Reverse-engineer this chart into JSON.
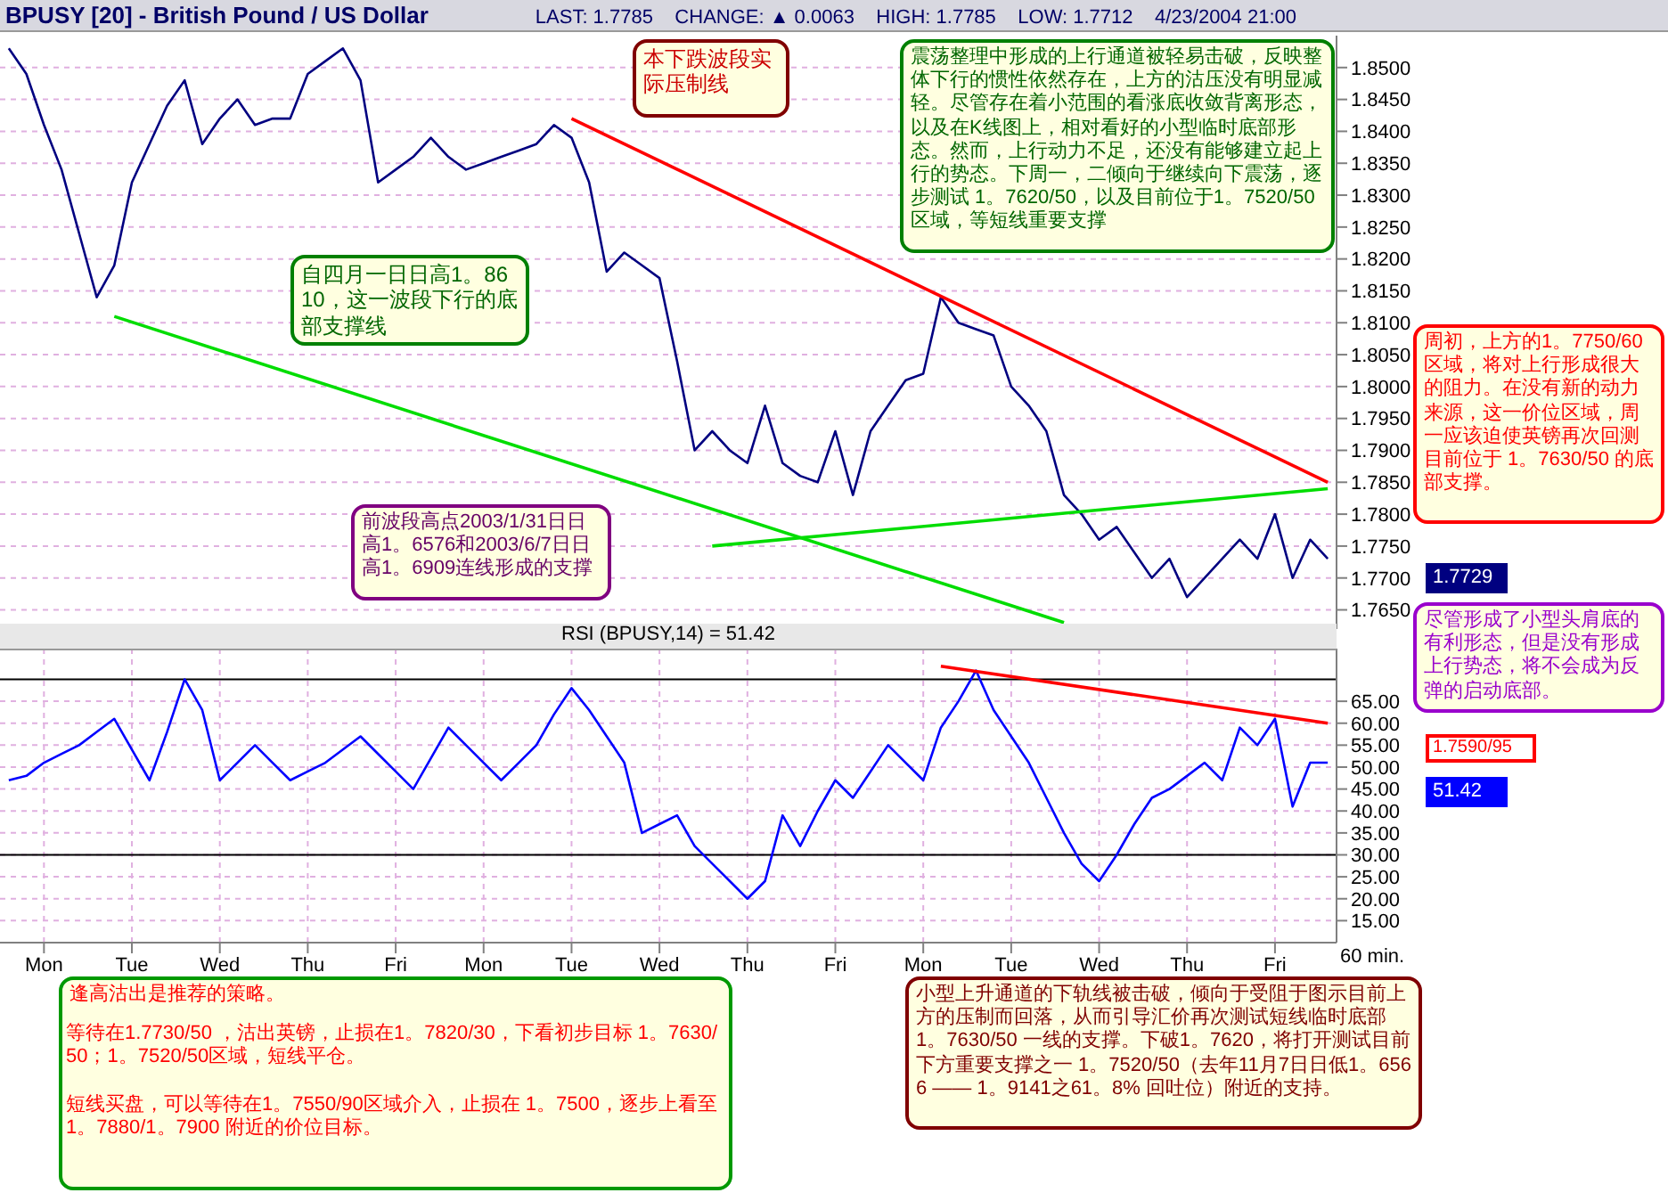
{
  "chart_data": [
    {
      "type": "line",
      "title": "BPUSY [20] - British Pound / US Dollar",
      "subtitle": "LAST: 1.7785    CHANGE: ▲ 0.0063    HIGH: 1.7785    LOW: 1.7712    4/23/2004 21:00",
      "categories": [
        null,
        null,
        null,
        null,
        null,
        null,
        null,
        null,
        null,
        null,
        null,
        null,
        null,
        null,
        null,
        null,
        null,
        null,
        null,
        null,
        null,
        null,
        null,
        null,
        null,
        null,
        null,
        null,
        null,
        null,
        null,
        null,
        null,
        null,
        null,
        null,
        null,
        null,
        null,
        null,
        null,
        null,
        null,
        null,
        null,
        null,
        null,
        null,
        null,
        null,
        null,
        null,
        null,
        null,
        null,
        null,
        null,
        null,
        null,
        null,
        null,
        null,
        null,
        null,
        null,
        null,
        null,
        null,
        null,
        null,
        null,
        null,
        null,
        null,
        null,
        null
      ],
      "ylim": [
        1.762,
        1.855
      ],
      "yticks": [
        {
          "value": 1.765,
          "label": "1.7650"
        },
        {
          "value": 1.77,
          "label": "1.7700"
        },
        {
          "value": 1.775,
          "label": "1.7750"
        },
        {
          "value": 1.78,
          "label": "1.7800"
        },
        {
          "value": 1.785,
          "label": "1.7850"
        },
        {
          "value": 1.79,
          "label": "1.7900"
        },
        {
          "value": 1.795,
          "label": "1.7950"
        },
        {
          "value": 1.8,
          "label": "1.8000"
        },
        {
          "value": 1.805,
          "label": "1.8050"
        },
        {
          "value": 1.81,
          "label": "1.8100"
        },
        {
          "value": 1.815,
          "label": "1.8150"
        },
        {
          "value": 1.82,
          "label": "1.8200"
        },
        {
          "value": 1.825,
          "label": "1.8250"
        },
        {
          "value": 1.83,
          "label": "1.8300"
        },
        {
          "value": 1.835,
          "label": "1.8350"
        },
        {
          "value": 1.84,
          "label": "1.8400"
        },
        {
          "value": 1.845,
          "label": "1.8450"
        },
        {
          "value": 1.85,
          "label": "1.8500"
        }
      ],
      "grid": true,
      "tick_labels": "y",
      "series": [
        {
          "color": "#000080",
          "values": [
            1.853,
            1.849,
            1.841,
            1.834,
            1.824,
            1.814,
            1.819,
            1.832,
            1.838,
            1.844,
            1.848,
            1.838,
            1.842,
            1.845,
            1.841,
            1.842,
            1.842,
            1.849,
            1.851,
            1.853,
            1.848,
            1.832,
            1.834,
            1.836,
            1.839,
            1.836,
            1.834,
            1.835,
            1.836,
            1.837,
            1.838,
            1.841,
            1.839,
            1.832,
            1.818,
            1.821,
            1.819,
            1.817,
            1.804,
            1.79,
            1.793,
            1.79,
            1.788,
            1.797,
            1.788,
            1.786,
            1.785,
            1.793,
            1.783,
            1.793,
            1.797,
            1.801,
            1.802,
            1.814,
            1.81,
            1.809,
            1.808,
            1.8,
            1.797,
            1.793,
            1.783,
            1.78,
            1.776,
            1.778,
            1.774,
            1.77,
            1.773,
            1.767,
            1.77,
            1.773,
            1.776,
            1.773,
            1.78,
            1.77,
            1.776,
            1.773
          ]
        },
        {
          "color": "#ff0000",
          "values": [
            null,
            null,
            null,
            null,
            null,
            null,
            null,
            null,
            null,
            null,
            null,
            null,
            null,
            null,
            null,
            null,
            null,
            null,
            null,
            null,
            null,
            null,
            null,
            null,
            null,
            null,
            null,
            null,
            null,
            null,
            null,
            null,
            1.842,
            null,
            null,
            null,
            null,
            null,
            null,
            null,
            null,
            null,
            null,
            null,
            null,
            null,
            null,
            null,
            null,
            null,
            null,
            null,
            null,
            null,
            null,
            null,
            null,
            null,
            null,
            null,
            null,
            null,
            null,
            null,
            null,
            null,
            null,
            null,
            null,
            null,
            null,
            null,
            null,
            null,
            null,
            1.785
          ]
        },
        {
          "color": "#00dd00",
          "values": [
            null,
            null,
            null,
            null,
            null,
            null,
            1.811,
            null,
            null,
            null,
            null,
            null,
            null,
            null,
            null,
            null,
            null,
            null,
            null,
            null,
            null,
            null,
            null,
            null,
            null,
            null,
            null,
            null,
            null,
            null,
            null,
            null,
            null,
            null,
            null,
            null,
            null,
            null,
            null,
            null,
            null,
            null,
            null,
            null,
            null,
            null,
            null,
            null,
            null,
            null,
            null,
            null,
            null,
            null,
            null,
            null,
            null,
            null,
            null,
            null,
            1.763,
            null,
            null,
            null,
            null,
            null,
            null,
            null,
            null,
            null,
            null,
            null,
            null,
            null,
            null,
            null
          ]
        },
        {
          "color": "#00dd00",
          "values": [
            null,
            null,
            null,
            null,
            null,
            null,
            null,
            null,
            null,
            null,
            null,
            null,
            null,
            null,
            null,
            null,
            null,
            null,
            null,
            null,
            null,
            null,
            null,
            null,
            null,
            null,
            null,
            null,
            null,
            null,
            null,
            null,
            null,
            null,
            null,
            null,
            null,
            null,
            null,
            null,
            1.775,
            null,
            null,
            null,
            null,
            null,
            null,
            null,
            null,
            null,
            null,
            null,
            null,
            null,
            null,
            null,
            null,
            null,
            null,
            null,
            null,
            null,
            null,
            null,
            null,
            null,
            null,
            null,
            null,
            null,
            null,
            null,
            null,
            null,
            null,
            1.784
          ]
        }
      ],
      "annotations": [
        "本下跌波段实际压制线",
        "震荡整理中形成的上行通道被轻易击破，反映整体下行的惯性依然存在，上方的沽压没有明显减轻。尽管存在着小范围的看涨底收敛背离形态，以及在K线图上，相对看好的小型临时底部形态。然而，上行动力不足，还没有能够建立起上行的势态。下周一，二倾向于继续向下震荡，逐步测试 1。7620/50，以及目前位于1。7520/50 区域，等短线重要支撑",
        "自四月一日日高1。8610，这一波段下行的底部支撑线",
        "前波段高点2003/1/31日日高1。6576和2003/6/7日日高1。6909连线形成的支撑",
        "周初，上方的1。7750/60 区域，将对上行形成很大的阻力。在没有新的动力来源，这一价位区域，周一应该迫使英镑再次回测目前位于 1。7630/50 的底部支撑。",
        "尽管形成了小型头肩底的有利形态，但是没有形成上行势态，将不会成为反弹的启动底部。",
        "1.7590/95",
        "1.7729",
        "逢高沽出是推荐的策略。",
        "等待在1.7730/50 ，沽出英镑，止损在1。7820/30，下看初步目标 1。7630/50；1。7520/50区域，短线平仓。",
        "短线买盘，可以等待在1。7550/90区域介入，止损在 1。7500，逐步上看至1。7880/1。7900 附近的价位目标。",
        "小型上升通道的下轨线被击破，倾向于受阻于图示目前上方的压制而回落，从而引导汇价再次测试短线临时底部1。7630/50 一线的支撑。下破1。7620，将打开测试目前下方重要支撑之一 1。7520/50（去年11月7日日低1。6566 —— 1。9141之61。8% 回吐位）附近的支持。"
      ]
    },
    {
      "type": "line",
      "title": "RSI (BPUSY,14) = 51.42",
      "xlabel": "60 min.",
      "categories": [
        null,
        null,
        "Mon",
        null,
        null,
        null,
        null,
        "Tue",
        null,
        null,
        null,
        null,
        "Wed",
        null,
        null,
        null,
        null,
        "Thu",
        null,
        null,
        null,
        null,
        "Fri",
        null,
        null,
        null,
        null,
        "Mon",
        null,
        null,
        null,
        null,
        "Tue",
        null,
        null,
        null,
        null,
        "Wed",
        null,
        null,
        null,
        null,
        "Thu",
        null,
        null,
        null,
        null,
        "Fri",
        null,
        null,
        null,
        null,
        "Mon",
        null,
        null,
        null,
        null,
        "Tue",
        null,
        null,
        null,
        null,
        "Wed",
        null,
        null,
        null,
        null,
        "Thu",
        null,
        null,
        null,
        null,
        "Fri",
        null,
        null,
        null
      ],
      "ylim": [
        10,
        77
      ],
      "yticks": [
        {
          "value": 15,
          "label": "15.00"
        },
        {
          "value": 20,
          "label": "20.00"
        },
        {
          "value": 25,
          "label": "25.00"
        },
        {
          "value": 30,
          "label": "30.00"
        },
        {
          "value": 35,
          "label": "35.00"
        },
        {
          "value": 40,
          "label": "40.00"
        },
        {
          "value": 45,
          "label": "45.00"
        },
        {
          "value": 50,
          "label": "50.00"
        },
        {
          "value": 55,
          "label": "55.00"
        },
        {
          "value": 60,
          "label": "60.00"
        },
        {
          "value": 65,
          "label": "65.00"
        }
      ],
      "grid": true,
      "ref_lines": [
        {
          "axis": "y",
          "value": 70,
          "color": "#000000"
        },
        {
          "axis": "y",
          "value": 30,
          "color": "#000000"
        }
      ],
      "series": [
        {
          "color": "#0000ff",
          "values": [
            47,
            48,
            51,
            53,
            55,
            58,
            61,
            54,
            47,
            58,
            70,
            63,
            47,
            51,
            55,
            51,
            47,
            49,
            51,
            54,
            57,
            53,
            49,
            45,
            52,
            59,
            55,
            51,
            47,
            51,
            55,
            62,
            68,
            63,
            57,
            51,
            35,
            37,
            39,
            32,
            28,
            24,
            20,
            24,
            39,
            32,
            40,
            47,
            43,
            49,
            55,
            51,
            47,
            59,
            65,
            72,
            63,
            57,
            51,
            43,
            35,
            28,
            24,
            30,
            37,
            43,
            45,
            48,
            51,
            47,
            59,
            55,
            61,
            41,
            51,
            51
          ]
        },
        {
          "color": "#ff0000",
          "values": [
            null,
            null,
            null,
            null,
            null,
            null,
            null,
            null,
            null,
            null,
            null,
            null,
            null,
            null,
            null,
            null,
            null,
            null,
            null,
            null,
            null,
            null,
            null,
            null,
            null,
            null,
            null,
            null,
            null,
            null,
            null,
            null,
            null,
            null,
            null,
            null,
            null,
            null,
            null,
            null,
            null,
            null,
            null,
            null,
            null,
            null,
            null,
            null,
            null,
            null,
            null,
            null,
            null,
            73,
            null,
            null,
            null,
            null,
            null,
            null,
            null,
            null,
            null,
            null,
            null,
            null,
            null,
            null,
            null,
            null,
            null,
            null,
            null,
            null,
            null,
            60
          ]
        }
      ],
      "annotations": [
        "51.42"
      ]
    }
  ]
}
